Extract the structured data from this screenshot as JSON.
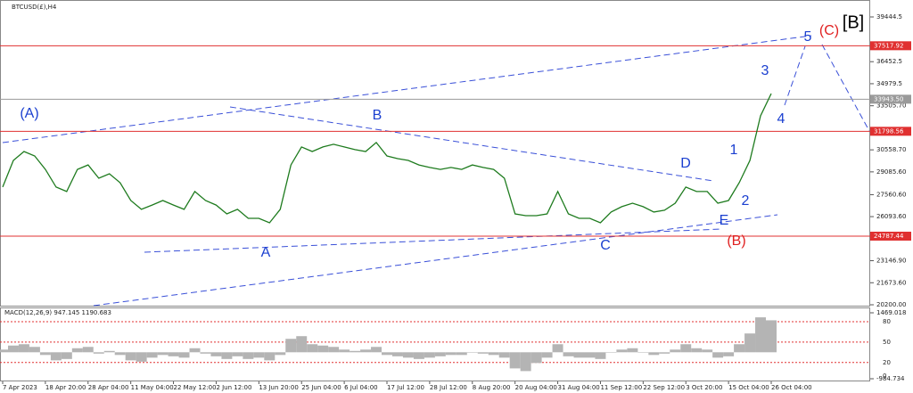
{
  "chart_data": [
    {
      "type": "line",
      "title": "BTCUSD(£),H4",
      "categories": [
        "7 Apr 2023",
        null,
        null,
        null,
        "18 Apr 20:00",
        null,
        null,
        null,
        "28 Apr 04:00",
        null,
        null,
        null,
        "11 May 04:00",
        null,
        null,
        null,
        "22 May 12:00",
        null,
        null,
        null,
        "2 Jun 12:00",
        null,
        null,
        null,
        "13 Jun 20:00",
        null,
        null,
        null,
        "25 Jun 04:00",
        null,
        null,
        null,
        "6 Jul 04:00",
        null,
        null,
        null,
        "17 Jul 12:00",
        null,
        null,
        null,
        "28 Jul 12:00",
        null,
        null,
        null,
        "8 Aug 20:00",
        null,
        null,
        null,
        "20 Aug 04:00",
        null,
        null,
        null,
        "31 Aug 04:00",
        null,
        null,
        null,
        "11 Sep 12:00",
        null,
        null,
        null,
        "22 Sep 12:00",
        null,
        null,
        null,
        "3 Oct 20:00",
        null,
        null,
        null,
        "15 Oct 04:00",
        null,
        null,
        null,
        "26 Oct 04:00"
      ],
      "series": [
        {
          "color": "#1e7b1e",
          "values": [
            28070,
            29850,
            30450,
            30150,
            29250,
            28070,
            27770,
            29250,
            29550,
            28660,
            28960,
            28360,
            27170,
            26580,
            26870,
            27170,
            26870,
            26580,
            27770,
            27170,
            26870,
            26280,
            26580,
            25980,
            25980,
            25680,
            26580,
            29550,
            30750,
            30450,
            30750,
            30930,
            30750,
            30570,
            30450,
            31050,
            30150,
            29970,
            29850,
            29550,
            29380,
            29250,
            29380,
            29250,
            29550,
            29380,
            29250,
            28660,
            26280,
            26160,
            26160,
            26280,
            27770,
            26280,
            25980,
            25980,
            25680,
            26400,
            26760,
            26990,
            26760,
            26400,
            26520,
            26990,
            28070,
            27770,
            27770,
            26990,
            27170,
            28360,
            29850,
            32830,
            34320
          ]
        }
      ],
      "ylim": [
        20200,
        39444.5
      ],
      "yticks": [
        39444.5,
        36452.5,
        34979.5,
        {
          "value": 33505.7,
          "label": "33505.70"
        },
        {
          "value": 30558.7,
          "label": "30558.70"
        },
        {
          "value": 29085.6,
          "label": "29085.60"
        },
        {
          "value": 27560.6,
          "label": "27560.60"
        },
        {
          "value": 26093.6,
          "label": "26093.60"
        },
        {
          "value": 23146.9,
          "label": "23146.90"
        },
        {
          "value": 21673.6,
          "label": "21673.60"
        },
        {
          "value": 20200,
          "label": "20200.00"
        }
      ],
      "levels": [
        37517.92,
        {
          "value": 33943.5,
          "label": "33943.50"
        },
        31798.56,
        24787.44
      ],
      "level_colors": [
        "#e03030",
        "#9a9a9a",
        "#e03030",
        "#e03030"
      ],
      "annotations": [
        "(A)",
        "B",
        "A",
        "C",
        "D",
        "E",
        "(B)",
        "1",
        "2",
        "3",
        "4",
        "5",
        "(C)",
        "[B]"
      ]
    },
    {
      "type": "bar",
      "title": "MACD(12,26,9) 947.145 1190.683",
      "values": [
        100,
        250,
        300,
        200,
        -100,
        -300,
        -250,
        150,
        200,
        -50,
        50,
        -100,
        -300,
        -350,
        -200,
        -100,
        -150,
        -200,
        150,
        -50,
        -150,
        -250,
        -150,
        -250,
        -200,
        -300,
        -100,
        500,
        600,
        300,
        250,
        200,
        100,
        50,
        100,
        200,
        -100,
        -150,
        -200,
        -250,
        -200,
        -150,
        -100,
        -100,
        0,
        -50,
        -100,
        -200,
        -600,
        -700,
        -400,
        -200,
        300,
        -150,
        -200,
        -200,
        -250,
        0,
        100,
        150,
        0,
        -100,
        -50,
        100,
        300,
        150,
        100,
        -200,
        -150,
        300,
        700,
        1300,
        1190
      ],
      "color": "#b4b4b4",
      "ylim": [
        -984.734,
        1469.018
      ],
      "yticks": [
        1469.018,
        -984.734
      ],
      "y2lim": [
        0,
        80
      ],
      "y2ticks": [
        80,
        50,
        20,
        0
      ]
    }
  ]
}
